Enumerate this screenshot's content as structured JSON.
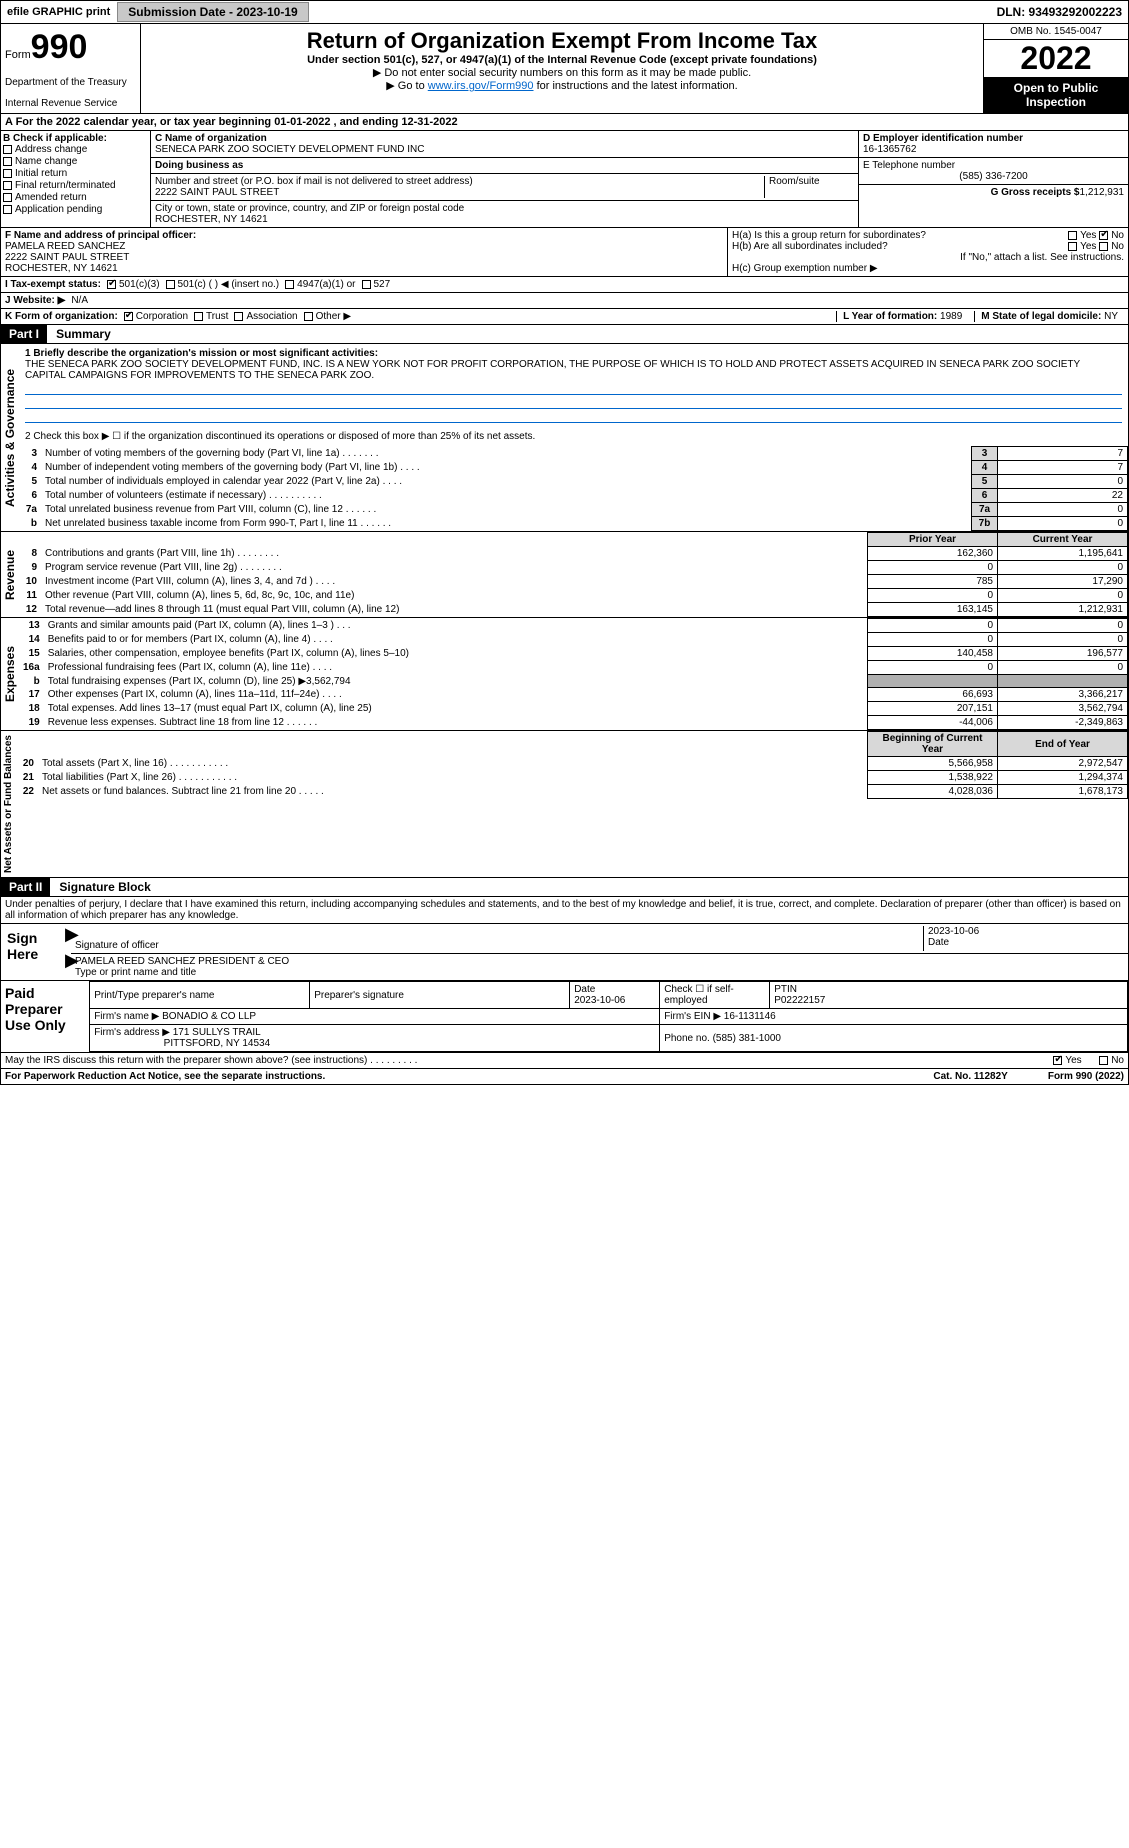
{
  "topbar": {
    "efile": "efile GRAPHIC print",
    "submission_btn": "Submission Date - 2023-10-19",
    "dln": "DLN: 93493292002223"
  },
  "header": {
    "form_word": "Form",
    "form_num": "990",
    "dept": "Department of the Treasury",
    "irs": "Internal Revenue Service",
    "title": "Return of Organization Exempt From Income Tax",
    "sub": "Under section 501(c), 527, or 4947(a)(1) of the Internal Revenue Code (except private foundations)",
    "sub2": "▶ Do not enter social security numbers on this form as it may be made public.",
    "sub3_pre": "▶ Go to ",
    "sub3_link": "www.irs.gov/Form990",
    "sub3_post": " for instructions and the latest information.",
    "omb": "OMB No. 1545-0047",
    "year": "2022",
    "open": "Open to Public Inspection"
  },
  "row_a": "A   For the 2022 calendar year, or tax year beginning 01-01-2022     , and ending 12-31-2022",
  "col_b": {
    "head": "B Check if applicable:",
    "items": [
      "Address change",
      "Name change",
      "Initial return",
      "Final return/terminated",
      "Amended return",
      "Application pending"
    ]
  },
  "col_c": {
    "c_lbl": "C Name of organization",
    "c_name": "SENECA PARK ZOO SOCIETY DEVELOPMENT FUND INC",
    "dba_lbl": "Doing business as",
    "dba": "",
    "street_lbl": "Number and street (or P.O. box if mail is not delivered to street address)",
    "room_lbl": "Room/suite",
    "street": "2222 SAINT PAUL STREET",
    "city_lbl": "City or town, state or province, country, and ZIP or foreign postal code",
    "city": "ROCHESTER, NY  14621"
  },
  "col_de": {
    "d_lbl": "D Employer identification number",
    "d_val": "16-1365762",
    "e_lbl": "E Telephone number",
    "e_val": "(585) 336-7200",
    "g_lbl": "G Gross receipts $",
    "g_val": "1,212,931"
  },
  "f": {
    "lbl": "F  Name and address of principal officer:",
    "name": "PAMELA REED SANCHEZ",
    "addr1": "2222 SAINT PAUL STREET",
    "addr2": "ROCHESTER, NY  14621"
  },
  "h": {
    "ha": "H(a)  Is this a group return for subordinates?",
    "hb": "H(b)  Are all subordinates included?",
    "hb_note": "If \"No,\" attach a list. See instructions.",
    "hc": "H(c)  Group exemption number ▶",
    "yes": "Yes",
    "no": "No"
  },
  "i": {
    "lbl": "I   Tax-exempt status:",
    "o1": "501(c)(3)",
    "o2": "501(c) (   ) ◀ (insert no.)",
    "o3": "4947(a)(1) or",
    "o4": "527"
  },
  "j": {
    "lbl": "J   Website: ▶",
    "val": "N/A"
  },
  "k": {
    "lbl": "K Form of organization:",
    "o1": "Corporation",
    "o2": "Trust",
    "o3": "Association",
    "o4": "Other ▶"
  },
  "l": {
    "lbl": "L Year of formation:",
    "val": "1989"
  },
  "m": {
    "lbl": "M State of legal domicile:",
    "val": "NY"
  },
  "part1": {
    "hdr": "Part I",
    "title": "Summary",
    "side_gov": "Activities & Governance",
    "side_rev": "Revenue",
    "side_exp": "Expenses",
    "side_net": "Net Assets or Fund Balances",
    "q1": "1  Briefly describe the organization's mission or most significant activities:",
    "mission": "THE SENECA PARK ZOO SOCIETY DEVELOPMENT FUND, INC. IS A NEW YORK NOT FOR PROFIT CORPORATION, THE PURPOSE OF WHICH IS TO HOLD AND PROTECT ASSETS ACQUIRED IN SENECA PARK ZOO SOCIETY CAPITAL CAMPAIGNS FOR IMPROVEMENTS TO THE SENECA PARK ZOO.",
    "q2": "2   Check this box ▶ ☐  if the organization discontinued its operations or disposed of more than 25% of its net assets.",
    "rows_top": [
      {
        "n": "3",
        "desc": "Number of voting members of the governing body (Part VI, line 1a)  .    .    .    .    .    .    .",
        "box": "3",
        "val": "7"
      },
      {
        "n": "4",
        "desc": "Number of independent voting members of the governing body (Part VI, line 1b)  .    .    .    .",
        "box": "4",
        "val": "7"
      },
      {
        "n": "5",
        "desc": "Total number of individuals employed in calendar year 2022 (Part V, line 2a)  .    .    .    .",
        "box": "5",
        "val": "0"
      },
      {
        "n": "6",
        "desc": "Total number of volunteers (estimate if necessary)   .    .    .    .    .    .    .    .    .    .",
        "box": "6",
        "val": "22"
      },
      {
        "n": "7a",
        "desc": "Total unrelated business revenue from Part VIII, column (C), line 12  .    .    .    .    .    .",
        "box": "7a",
        "val": "0"
      },
      {
        "n": "b",
        "desc": "Net unrelated business taxable income from Form 990-T, Part I, line 11  .    .    .    .    .    .",
        "box": "7b",
        "val": "0"
      }
    ],
    "hdr_prior": "Prior Year",
    "hdr_curr": "Current Year",
    "rows_rev": [
      {
        "n": "8",
        "desc": "Contributions and grants (Part VIII, line 1h)  .    .    .    .    .    .    .    .",
        "p": "162,360",
        "c": "1,195,641"
      },
      {
        "n": "9",
        "desc": "Program service revenue (Part VIII, line 2g)  .    .    .    .    .    .    .    .",
        "p": "0",
        "c": "0"
      },
      {
        "n": "10",
        "desc": "Investment income (Part VIII, column (A), lines 3, 4, and 7d )   .    .    .    .",
        "p": "785",
        "c": "17,290"
      },
      {
        "n": "11",
        "desc": "Other revenue (Part VIII, column (A), lines 5, 6d, 8c, 9c, 10c, and 11e)",
        "p": "0",
        "c": "0"
      },
      {
        "n": "12",
        "desc": "Total revenue—add lines 8 through 11 (must equal Part VIII, column (A), line 12)",
        "p": "163,145",
        "c": "1,212,931"
      }
    ],
    "rows_exp": [
      {
        "n": "13",
        "desc": "Grants and similar amounts paid (Part IX, column (A), lines 1–3 )  .    .    .",
        "p": "0",
        "c": "0"
      },
      {
        "n": "14",
        "desc": "Benefits paid to or for members (Part IX, column (A), line 4)  .    .    .    .",
        "p": "0",
        "c": "0"
      },
      {
        "n": "15",
        "desc": "Salaries, other compensation, employee benefits (Part IX, column (A), lines 5–10)",
        "p": "140,458",
        "c": "196,577"
      },
      {
        "n": "16a",
        "desc": "Professional fundraising fees (Part IX, column (A), line 11e)  .    .    .    .",
        "p": "0",
        "c": "0"
      },
      {
        "n": "b",
        "desc": "Total fundraising expenses (Part IX, column (D), line 25) ▶3,562,794",
        "p": "",
        "c": "",
        "shade": true
      },
      {
        "n": "17",
        "desc": "Other expenses (Part IX, column (A), lines 11a–11d, 11f–24e)  .    .    .    .",
        "p": "66,693",
        "c": "3,366,217"
      },
      {
        "n": "18",
        "desc": "Total expenses. Add lines 13–17 (must equal Part IX, column (A), line 25)",
        "p": "207,151",
        "c": "3,562,794"
      },
      {
        "n": "19",
        "desc": "Revenue less expenses. Subtract line 18 from line 12  .    .    .    .    .    .",
        "p": "-44,006",
        "c": "-2,349,863"
      }
    ],
    "hdr_beg": "Beginning of Current Year",
    "hdr_end": "End of Year",
    "rows_net": [
      {
        "n": "20",
        "desc": "Total assets (Part X, line 16)  .    .    .    .    .    .    .    .    .    .    .",
        "p": "5,566,958",
        "c": "2,972,547"
      },
      {
        "n": "21",
        "desc": "Total liabilities (Part X, line 26)  .    .    .    .    .    .    .    .    .    .    .",
        "p": "1,538,922",
        "c": "1,294,374"
      },
      {
        "n": "22",
        "desc": "Net assets or fund balances. Subtract line 21 from line 20  .    .    .    .    .",
        "p": "4,028,036",
        "c": "1,678,173"
      }
    ]
  },
  "part2": {
    "hdr": "Part II",
    "title": "Signature Block",
    "penalties": "Under penalties of perjury, I declare that I have examined this return, including accompanying schedules and statements, and to the best of my knowledge and belief, it is true, correct, and complete. Declaration of preparer (other than officer) is based on all information of which preparer has any knowledge.",
    "sign_here": "Sign Here",
    "sig_officer": "Signature of officer",
    "sig_date": "2023-10-06",
    "date_lbl": "Date",
    "name_title": "PAMELA REED SANCHEZ  PRESIDENT & CEO",
    "name_title_lbl": "Type or print name and title",
    "paid_hdr": "Paid Preparer Use Only",
    "p_name_lbl": "Print/Type preparer's name",
    "p_sig_lbl": "Preparer's signature",
    "p_date_lbl": "Date",
    "p_date": "2023-10-06",
    "p_check_lbl": "Check ☐ if self-employed",
    "ptin_lbl": "PTIN",
    "ptin": "P02222157",
    "firm_name_lbl": "Firm's name    ▶",
    "firm_name": "BONADIO & CO LLP",
    "firm_ein_lbl": "Firm's EIN ▶",
    "firm_ein": "16-1131146",
    "firm_addr_lbl": "Firm's address ▶",
    "firm_addr": "171 SULLYS TRAIL",
    "firm_city": "PITTSFORD, NY  14534",
    "phone_lbl": "Phone no.",
    "phone": "(585) 381-1000",
    "may_irs": "May the IRS discuss this return with the preparer shown above? (see instructions)   .    .    .    .    .    .    .    .    .",
    "yes": "Yes",
    "no": "No"
  },
  "footer": {
    "pra": "For Paperwork Reduction Act Notice, see the separate instructions.",
    "cat": "Cat. No. 11282Y",
    "form": "Form 990 (2022)"
  },
  "colors": {
    "link": "#0066cc",
    "hdr_bg": "#000000",
    "shade": "#d8d8d8"
  }
}
